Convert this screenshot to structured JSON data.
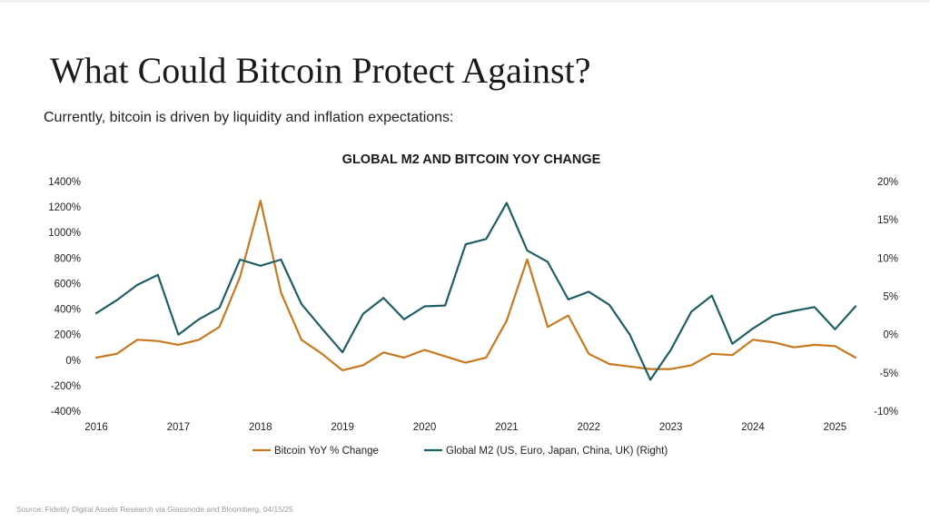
{
  "slide": {
    "title": "What Could Bitcoin Protect Against?",
    "subtitle": "Currently, bitcoin is driven by liquidity and inflation expectations:",
    "source": "Source: Fidelity Digital Assets Research via Glassnode and Bloomberg, 04/15/25"
  },
  "chart_data": {
    "type": "line",
    "title": "GLOBAL M2 AND BITCOIN YOY CHANGE",
    "xlabel": "",
    "ylabel": "",
    "x_ticks": [
      "2016",
      "2017",
      "2018",
      "2019",
      "2020",
      "2021",
      "2022",
      "2023",
      "2024",
      "2025"
    ],
    "xlim": [
      2016,
      2025.25
    ],
    "y_left": {
      "ticks": [
        "1400%",
        "1200%",
        "1000%",
        "800%",
        "600%",
        "400%",
        "200%",
        "0%",
        "-200%",
        "-400%"
      ],
      "lim": [
        -400,
        1400
      ]
    },
    "y_right": {
      "ticks": [
        "20%",
        "15%",
        "10%",
        "5%",
        "0%",
        "-5%",
        "-10%"
      ],
      "lim": [
        -10,
        20
      ]
    },
    "grid": false,
    "legend": "bottom",
    "series": [
      {
        "name": "Bitcoin YoY % Change",
        "axis": "left",
        "color": "#c8781e",
        "x": [
          2016,
          2016.25,
          2016.5,
          2016.75,
          2017,
          2017.25,
          2017.5,
          2017.75,
          2018,
          2018.25,
          2018.5,
          2018.75,
          2019,
          2019.25,
          2019.5,
          2019.75,
          2020,
          2020.25,
          2020.5,
          2020.75,
          2021,
          2021.25,
          2021.5,
          2021.75,
          2022,
          2022.25,
          2022.5,
          2022.75,
          2023,
          2023.25,
          2023.5,
          2023.75,
          2024,
          2024.25,
          2024.5,
          2024.75,
          2025,
          2025.25
        ],
        "values": [
          20,
          50,
          160,
          150,
          120,
          160,
          260,
          650,
          1250,
          530,
          160,
          50,
          -80,
          -40,
          60,
          20,
          80,
          30,
          -20,
          20,
          310,
          790,
          260,
          350,
          50,
          -30,
          -50,
          -70,
          -70,
          -40,
          50,
          40,
          160,
          140,
          100,
          120,
          110,
          20
        ]
      },
      {
        "name": "Global M2 (US, Euro, Japan, China, UK) (Right)",
        "axis": "right",
        "color": "#1f5f63",
        "x": [
          2016,
          2016.25,
          2016.5,
          2016.75,
          2017,
          2017.25,
          2017.5,
          2017.75,
          2018,
          2018.25,
          2018.5,
          2018.75,
          2019,
          2019.25,
          2019.5,
          2019.75,
          2020,
          2020.25,
          2020.5,
          2020.75,
          2021,
          2021.25,
          2021.5,
          2021.75,
          2022,
          2022.25,
          2022.5,
          2022.75,
          2023,
          2023.25,
          2023.5,
          2023.75,
          2024,
          2024.25,
          2024.5,
          2024.75,
          2025,
          2025.25
        ],
        "values": [
          2.8,
          4.5,
          6.5,
          7.8,
          0,
          2,
          3.5,
          9.8,
          9,
          9.8,
          4,
          0.8,
          -2.3,
          2.7,
          4.8,
          2,
          3.7,
          3.8,
          11.8,
          12.5,
          17.2,
          11,
          9.5,
          4.6,
          5.6,
          3.9,
          0,
          -5.9,
          -2,
          3,
          5.1,
          -1.2,
          0.8,
          2.5,
          3.1,
          3.6,
          0.7,
          3.7
        ]
      }
    ]
  }
}
